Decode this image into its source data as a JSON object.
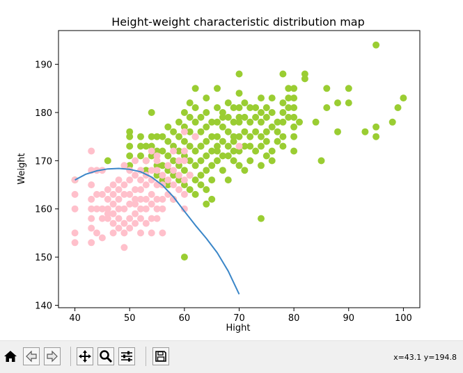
{
  "chart_data": {
    "type": "scatter",
    "title": "Height-weight characteristic distribution map",
    "xlabel": "Hight",
    "ylabel": "Weight",
    "xlim": [
      37,
      103
    ],
    "ylim": [
      139.5,
      197
    ],
    "xticks": [
      40,
      50,
      60,
      70,
      80,
      90,
      100
    ],
    "yticks": [
      140,
      150,
      160,
      170,
      180,
      190
    ],
    "series": [
      {
        "color": "#9acd32",
        "points": [
          [
            60,
            150
          ],
          [
            74,
            158
          ],
          [
            95,
            194
          ],
          [
            100,
            183
          ],
          [
            99,
            181
          ],
          [
            98,
            178
          ],
          [
            95,
            177
          ],
          [
            95,
            175
          ],
          [
            93,
            176
          ],
          [
            90,
            185
          ],
          [
            90,
            182
          ],
          [
            88,
            176
          ],
          [
            88,
            182
          ],
          [
            86,
            181
          ],
          [
            86,
            185
          ],
          [
            85,
            170
          ],
          [
            84,
            178
          ],
          [
            82,
            188
          ],
          [
            82,
            187
          ],
          [
            81,
            178
          ],
          [
            80,
            185
          ],
          [
            80,
            183
          ],
          [
            80,
            181
          ],
          [
            80,
            179
          ],
          [
            80,
            177
          ],
          [
            80,
            175
          ],
          [
            80,
            172
          ],
          [
            79,
            185
          ],
          [
            79,
            183
          ],
          [
            79,
            181
          ],
          [
            79,
            179
          ],
          [
            78,
            188
          ],
          [
            78,
            182
          ],
          [
            78,
            180
          ],
          [
            78,
            178
          ],
          [
            78,
            175
          ],
          [
            78,
            173
          ],
          [
            77,
            178
          ],
          [
            77,
            176
          ],
          [
            77,
            174
          ],
          [
            76,
            183
          ],
          [
            76,
            180
          ],
          [
            76,
            177
          ],
          [
            76,
            172
          ],
          [
            76,
            170
          ],
          [
            75,
            181
          ],
          [
            75,
            179
          ],
          [
            75,
            176
          ],
          [
            75,
            174
          ],
          [
            75,
            171
          ],
          [
            74,
            183
          ],
          [
            74,
            180
          ],
          [
            74,
            178
          ],
          [
            74,
            175
          ],
          [
            74,
            173
          ],
          [
            74,
            169
          ],
          [
            73,
            181
          ],
          [
            73,
            179
          ],
          [
            73,
            176
          ],
          [
            73,
            172
          ],
          [
            72,
            181
          ],
          [
            72,
            178
          ],
          [
            72,
            175
          ],
          [
            72,
            170
          ],
          [
            71,
            182
          ],
          [
            71,
            179
          ],
          [
            71,
            176
          ],
          [
            71,
            173
          ],
          [
            71,
            168
          ],
          [
            70,
            188
          ],
          [
            70,
            184
          ],
          [
            70,
            181
          ],
          [
            70,
            178
          ],
          [
            70,
            175
          ],
          [
            70,
            172
          ],
          [
            70,
            169
          ],
          [
            69,
            181
          ],
          [
            69,
            178
          ],
          [
            69,
            175
          ],
          [
            69,
            172
          ],
          [
            69,
            170
          ],
          [
            68,
            182
          ],
          [
            68,
            179
          ],
          [
            68,
            176
          ],
          [
            68,
            173
          ],
          [
            68,
            171
          ],
          [
            68,
            166
          ],
          [
            67,
            180
          ],
          [
            67,
            177
          ],
          [
            67,
            174
          ],
          [
            67,
            171
          ],
          [
            67,
            168
          ],
          [
            66,
            185
          ],
          [
            66,
            181
          ],
          [
            66,
            178
          ],
          [
            66,
            175
          ],
          [
            66,
            173
          ],
          [
            66,
            170
          ],
          [
            65,
            178
          ],
          [
            65,
            175
          ],
          [
            65,
            172
          ],
          [
            65,
            169
          ],
          [
            65,
            166
          ],
          [
            65,
            162
          ],
          [
            64,
            183
          ],
          [
            64,
            180
          ],
          [
            64,
            177
          ],
          [
            64,
            174
          ],
          [
            64,
            171
          ],
          [
            64,
            168
          ],
          [
            64,
            164
          ],
          [
            64,
            161
          ],
          [
            63,
            179
          ],
          [
            63,
            176
          ],
          [
            63,
            173
          ],
          [
            63,
            170
          ],
          [
            63,
            167
          ],
          [
            63,
            165
          ],
          [
            62,
            185
          ],
          [
            62,
            181
          ],
          [
            62,
            178
          ],
          [
            62,
            175
          ],
          [
            62,
            172
          ],
          [
            62,
            169
          ],
          [
            62,
            166
          ],
          [
            62,
            163
          ],
          [
            61,
            182
          ],
          [
            61,
            179
          ],
          [
            61,
            176
          ],
          [
            61,
            173
          ],
          [
            61,
            170
          ],
          [
            61,
            167
          ],
          [
            61,
            164
          ],
          [
            60,
            180
          ],
          [
            60,
            177
          ],
          [
            60,
            174
          ],
          [
            60,
            171
          ],
          [
            60,
            168
          ],
          [
            60,
            165
          ],
          [
            59,
            178
          ],
          [
            59,
            175
          ],
          [
            59,
            172
          ],
          [
            59,
            169
          ],
          [
            59,
            166
          ],
          [
            58,
            176
          ],
          [
            58,
            173
          ],
          [
            58,
            170
          ],
          [
            58,
            167
          ],
          [
            58,
            162
          ],
          [
            57,
            177
          ],
          [
            57,
            174
          ],
          [
            57,
            171
          ],
          [
            57,
            168
          ],
          [
            57,
            165
          ],
          [
            56,
            175
          ],
          [
            56,
            172
          ],
          [
            56,
            169
          ],
          [
            56,
            166
          ],
          [
            55,
            175
          ],
          [
            55,
            172
          ],
          [
            55,
            169
          ],
          [
            55,
            167
          ],
          [
            54,
            180
          ],
          [
            54,
            175
          ],
          [
            54,
            173
          ],
          [
            54,
            171
          ],
          [
            53,
            173
          ],
          [
            53,
            170
          ],
          [
            53,
            168
          ],
          [
            52,
            175
          ],
          [
            52,
            173
          ],
          [
            52,
            171
          ],
          [
            50,
            176
          ],
          [
            50,
            175
          ],
          [
            50,
            173
          ],
          [
            50,
            171
          ],
          [
            50,
            169
          ],
          [
            46,
            170
          ],
          [
            40,
            166
          ],
          [
            63,
            173
          ],
          [
            66,
            172
          ],
          [
            69,
            174
          ],
          [
            72,
            173
          ],
          [
            67,
            179
          ],
          [
            70,
            179
          ]
        ]
      },
      {
        "color": "#ffc0cb",
        "points": [
          [
            40,
            166
          ],
          [
            40,
            163
          ],
          [
            40,
            160
          ],
          [
            40,
            155
          ],
          [
            40,
            153
          ],
          [
            43,
            172
          ],
          [
            43,
            168
          ],
          [
            43,
            165
          ],
          [
            43,
            162
          ],
          [
            43,
            160
          ],
          [
            43,
            158
          ],
          [
            43,
            156
          ],
          [
            43,
            153
          ],
          [
            44,
            168
          ],
          [
            44,
            163
          ],
          [
            44,
            160
          ],
          [
            44,
            155
          ],
          [
            45,
            168
          ],
          [
            45,
            163
          ],
          [
            45,
            160
          ],
          [
            45,
            158
          ],
          [
            46,
            164
          ],
          [
            46,
            162
          ],
          [
            46,
            160
          ],
          [
            46,
            158
          ],
          [
            47,
            163
          ],
          [
            47,
            161
          ],
          [
            47,
            159
          ],
          [
            47,
            157
          ],
          [
            47,
            155
          ],
          [
            48,
            166
          ],
          [
            48,
            164
          ],
          [
            48,
            162
          ],
          [
            48,
            160
          ],
          [
            48,
            158
          ],
          [
            48,
            156
          ],
          [
            49,
            169
          ],
          [
            49,
            165
          ],
          [
            49,
            163
          ],
          [
            49,
            160
          ],
          [
            49,
            157
          ],
          [
            49,
            155
          ],
          [
            49,
            152
          ],
          [
            50,
            168
          ],
          [
            50,
            166
          ],
          [
            50,
            163
          ],
          [
            50,
            161
          ],
          [
            50,
            158
          ],
          [
            50,
            156
          ],
          [
            51,
            170
          ],
          [
            51,
            167
          ],
          [
            51,
            164
          ],
          [
            51,
            162
          ],
          [
            51,
            159
          ],
          [
            51,
            157
          ],
          [
            52,
            168
          ],
          [
            52,
            166
          ],
          [
            52,
            164
          ],
          [
            52,
            162
          ],
          [
            52,
            160
          ],
          [
            52,
            158
          ],
          [
            52,
            155
          ],
          [
            53,
            170
          ],
          [
            53,
            167
          ],
          [
            53,
            165
          ],
          [
            53,
            162
          ],
          [
            53,
            160
          ],
          [
            53,
            157
          ],
          [
            54,
            172
          ],
          [
            54,
            168
          ],
          [
            54,
            166
          ],
          [
            54,
            163
          ],
          [
            54,
            161
          ],
          [
            54,
            158
          ],
          [
            54,
            155
          ],
          [
            55,
            170
          ],
          [
            55,
            168
          ],
          [
            55,
            165
          ],
          [
            55,
            162
          ],
          [
            55,
            160
          ],
          [
            55,
            158
          ],
          [
            56,
            167
          ],
          [
            56,
            165
          ],
          [
            56,
            162
          ],
          [
            56,
            160
          ],
          [
            56,
            155
          ],
          [
            57,
            169
          ],
          [
            57,
            166
          ],
          [
            57,
            163
          ],
          [
            58,
            172
          ],
          [
            58,
            168
          ],
          [
            58,
            165
          ],
          [
            58,
            162
          ],
          [
            59,
            170
          ],
          [
            59,
            167
          ],
          [
            59,
            164
          ],
          [
            60,
            176
          ],
          [
            60,
            172
          ],
          [
            60,
            170
          ],
          [
            60,
            166
          ],
          [
            60,
            163
          ],
          [
            60,
            160
          ],
          [
            61,
            167
          ],
          [
            62,
            175
          ],
          [
            70,
            173
          ],
          [
            46,
            159
          ],
          [
            51,
            161
          ],
          [
            47,
            165
          ],
          [
            55,
            171
          ],
          [
            45,
            154
          ]
        ]
      }
    ],
    "curve": {
      "color": "#3a86c8",
      "points": [
        [
          40,
          166
        ],
        [
          42,
          167.2
        ],
        [
          44,
          167.9
        ],
        [
          46,
          168.3
        ],
        [
          48,
          168.4
        ],
        [
          50,
          168.2
        ],
        [
          52,
          167.7
        ],
        [
          54,
          166.6
        ],
        [
          56,
          164.9
        ],
        [
          58,
          162.5
        ],
        [
          60,
          159.5
        ],
        [
          62,
          156.6
        ],
        [
          64,
          153.9
        ],
        [
          66,
          150.9
        ],
        [
          68,
          147.1
        ],
        [
          70,
          142.3
        ]
      ]
    }
  },
  "toolbar": {
    "icons": [
      "home-icon",
      "back-arrow-icon",
      "forward-arrow-icon",
      "pan-icon",
      "zoom-icon",
      "configure-subplots-icon",
      "save-icon"
    ],
    "coords": "x=43.1 y=194.8"
  }
}
